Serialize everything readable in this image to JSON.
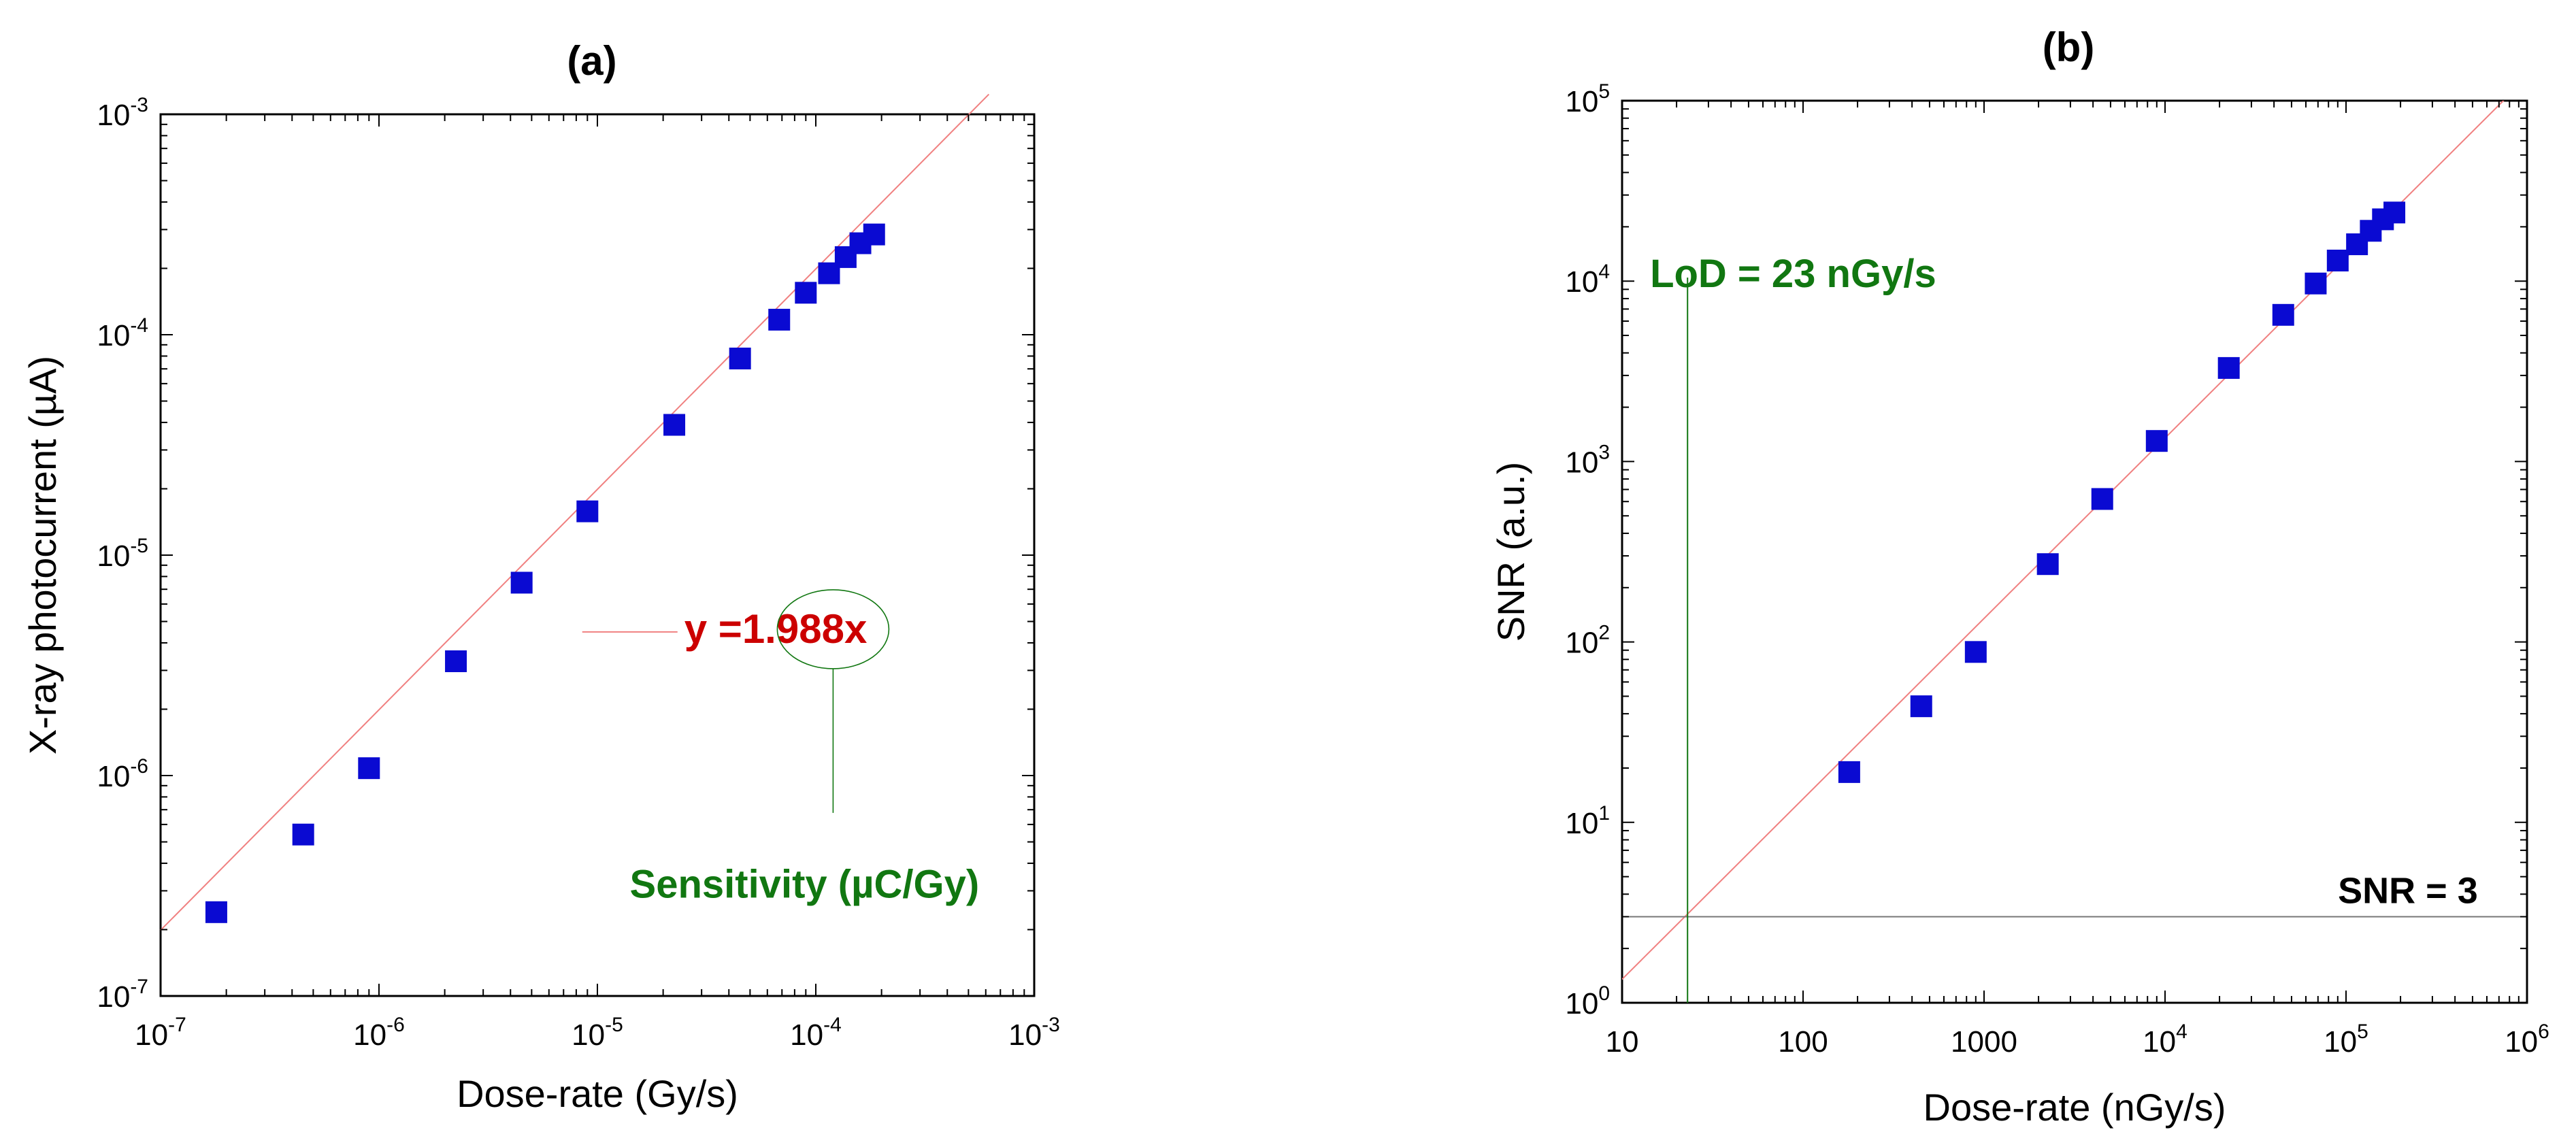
{
  "colors": {
    "marker": "#0a0ad2",
    "fit_line": "#f08080",
    "green": "#117711",
    "red": "#cc0000",
    "gray_line": "#777777"
  },
  "chart_data": [
    {
      "type": "scatter",
      "title": "(a)",
      "xlabel": "Dose-rate (Gy/s)",
      "ylabel": "X-ray photocurrent (µA)",
      "xscale": "log",
      "yscale": "log",
      "xlim": [
        1e-07,
        0.001
      ],
      "ylim": [
        1e-07,
        0.001
      ],
      "x_ticks": [
        {
          "value": 1e-07,
          "base": "10",
          "exp": "-7"
        },
        {
          "value": 1e-06,
          "base": "10",
          "exp": "-6"
        },
        {
          "value": 1e-05,
          "base": "10",
          "exp": "-5"
        },
        {
          "value": 0.0001,
          "base": "10",
          "exp": "-4"
        },
        {
          "value": 0.001,
          "base": "10",
          "exp": "-3"
        }
      ],
      "y_ticks": [
        {
          "value": 1e-07,
          "base": "10",
          "exp": "-7"
        },
        {
          "value": 1e-06,
          "base": "10",
          "exp": "-6"
        },
        {
          "value": 1e-05,
          "base": "10",
          "exp": "-5"
        },
        {
          "value": 0.0001,
          "base": "10",
          "exp": "-4"
        },
        {
          "value": 0.001,
          "base": "10",
          "exp": "-3"
        }
      ],
      "series": [
        {
          "name": "data",
          "x": [
            1.8e-07,
            4.5e-07,
            9e-07,
            2.25e-06,
            4.5e-06,
            9e-06,
            2.25e-05,
            4.5e-05,
            6.8e-05,
            9e-05,
            0.000115,
            0.000137,
            0.00016,
            0.000185
          ],
          "y": [
            2.4e-07,
            5.4e-07,
            1.08e-06,
            3.3e-06,
            7.5e-06,
            1.58e-05,
            3.9e-05,
            7.8e-05,
            0.000117,
            0.000155,
            0.00019,
            0.000225,
            0.00026,
            0.000285
          ]
        }
      ],
      "fit": {
        "slope": 1.988,
        "x_range": [
          1e-07,
          0.00062
        ]
      },
      "annotations": {
        "equation": "y =1.988x",
        "equation_anchor": [
          2.5e-05,
          4e-06
        ],
        "highlight_anchor": [
          0.00012,
          4e-06
        ],
        "sensitivity": "Sensitivity (µC/Gy)",
        "sensitivity_anchor": [
          5e-05,
          3e-07
        ]
      }
    },
    {
      "type": "scatter",
      "title": "(b)",
      "xlabel": "Dose-rate (nGy/s)",
      "ylabel": "SNR (a.u.)",
      "xscale": "log",
      "yscale": "log",
      "xlim": [
        10,
        1000000
      ],
      "ylim": [
        1,
        100000
      ],
      "x_ticks": [
        {
          "value": 10,
          "base": "10",
          "exp": ""
        },
        {
          "value": 100,
          "base": "100",
          "exp": ""
        },
        {
          "value": 1000,
          "base": "1000",
          "exp": ""
        },
        {
          "value": 10000,
          "base": "10",
          "exp": "4"
        },
        {
          "value": 100000,
          "base": "10",
          "exp": "5"
        },
        {
          "value": 1000000,
          "base": "10",
          "exp": "6"
        }
      ],
      "y_ticks": [
        {
          "value": 1,
          "base": "10",
          "exp": "0"
        },
        {
          "value": 10,
          "base": "10",
          "exp": "1"
        },
        {
          "value": 100,
          "base": "10",
          "exp": "2"
        },
        {
          "value": 1000,
          "base": "10",
          "exp": "3"
        },
        {
          "value": 10000,
          "base": "10",
          "exp": "4"
        },
        {
          "value": 100000,
          "base": "10",
          "exp": "5"
        }
      ],
      "series": [
        {
          "name": "data",
          "x": [
            180,
            450,
            900,
            2250,
            4500,
            9000,
            22500,
            45000,
            68000,
            90000,
            115000,
            137000,
            160000,
            185000
          ],
          "y": [
            19,
            44,
            88,
            270,
            620,
            1300,
            3300,
            6500,
            9700,
            13000,
            16000,
            19000,
            22000,
            24000
          ]
        }
      ],
      "fit": {
        "slope": 0.135,
        "x_range": [
          10,
          1000000
        ]
      },
      "lod_x": 23,
      "snr_threshold": 3,
      "annotations": {
        "lod": "LoD = 23 nGy/s",
        "lod_anchor": [
          22,
          11000
        ],
        "snr": "SNR = 3",
        "snr_anchor": [
          450000,
          3.5
        ]
      }
    }
  ]
}
